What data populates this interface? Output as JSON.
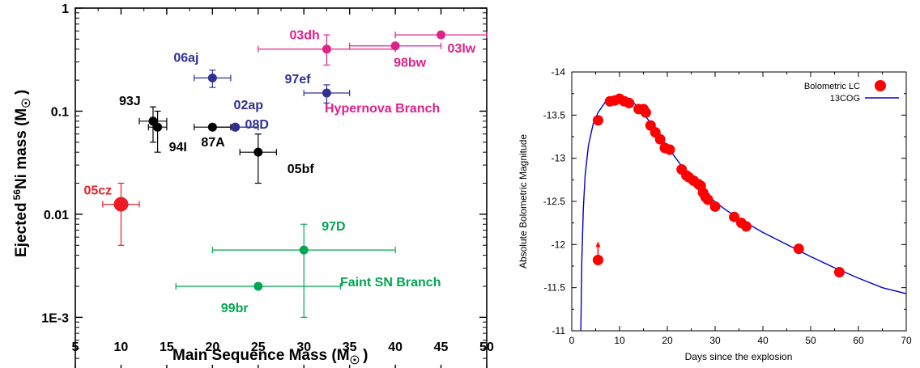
{
  "chart_data": [
    {
      "type": "scatter",
      "xlabel": "Main Sequence Mass (M",
      "xlabel_sub": "☉",
      "xlabel_end": ")",
      "ylabel": "Ejected",
      "ylabel_sup": "56",
      "ylabel_mid": "Ni mass (M",
      "ylabel_sub": "☉",
      "ylabel_end": ")",
      "xlim": [
        5,
        50
      ],
      "ylim": [
        0.0003,
        1
      ],
      "yscale": "log",
      "xticks": [
        5,
        10,
        15,
        20,
        25,
        30,
        35,
        40,
        45,
        50
      ],
      "xtick_labels": [
        "5",
        "10",
        "15",
        "20",
        "25",
        "30",
        "35",
        "40",
        "45",
        "50"
      ],
      "yticks": [
        1,
        0.1,
        0.01,
        0.001
      ],
      "ytick_labels": [
        "1",
        "0.1",
        "0.01",
        "1E-3"
      ],
      "points": [
        {
          "label": "03dh",
          "x": 32.5,
          "y": 0.4,
          "xerr": [
            25,
            40
          ],
          "yerr": [
            0.28,
            0.55
          ],
          "color": "#e0218a"
        },
        {
          "label": "98bw",
          "x": 40,
          "y": 0.43,
          "xerr": [
            35,
            45
          ],
          "yerr": null,
          "color": "#e0218a"
        },
        {
          "label": "03lw",
          "x": 45,
          "y": 0.55,
          "xerr": [
            40,
            50
          ],
          "yerr": null,
          "color": "#e0218a"
        },
        {
          "label": "06aj",
          "x": 20,
          "y": 0.21,
          "xerr": [
            18,
            22
          ],
          "yerr": [
            0.17,
            0.25
          ],
          "color": "#2e3192"
        },
        {
          "label": "97ef",
          "x": 32.5,
          "y": 0.15,
          "xerr": [
            30,
            35
          ],
          "yerr": [
            0.12,
            0.18
          ],
          "color": "#2e3192"
        },
        {
          "label": "02ap",
          "x": 22.5,
          "y": 0.07,
          "xerr": [
            20,
            25
          ],
          "yerr": null,
          "color": "#2e3192"
        },
        {
          "label": "08D",
          "x": 22.5,
          "y": 0.07,
          "xerr": [
            20,
            25
          ],
          "yerr": null,
          "color": "#2e3192"
        },
        {
          "label": "93J",
          "x": 13.5,
          "y": 0.08,
          "xerr": [
            12,
            15
          ],
          "yerr": [
            0.05,
            0.11
          ],
          "color": "#000000"
        },
        {
          "label": "94I",
          "x": 14,
          "y": 0.07,
          "xerr": [
            13,
            15
          ],
          "yerr": [
            0.04,
            0.1
          ],
          "color": "#000000"
        },
        {
          "label": "87A",
          "x": 20,
          "y": 0.07,
          "xerr": [
            18,
            22
          ],
          "yerr": null,
          "color": "#000000"
        },
        {
          "label": "05bf",
          "x": 25,
          "y": 0.04,
          "xerr": [
            23,
            27
          ],
          "yerr": [
            0.02,
            0.06
          ],
          "color": "#000000"
        },
        {
          "label": "05cz",
          "x": 10,
          "y": 0.0125,
          "xerr": [
            8,
            12
          ],
          "yerr": [
            0.005,
            0.02
          ],
          "color": "#ed1c24",
          "big": true
        },
        {
          "label": "97D",
          "x": 30,
          "y": 0.0045,
          "xerr": [
            20,
            40
          ],
          "yerr": [
            0.001,
            0.008
          ],
          "color": "#00a651"
        },
        {
          "label": "99br",
          "x": 25,
          "y": 0.002,
          "xerr": [
            16,
            34
          ],
          "yerr": null,
          "color": "#00a651"
        }
      ],
      "annotations": [
        {
          "text": "Hypernova Branch",
          "color": "#e0218a"
        },
        {
          "text": "Faint SN Branch",
          "color": "#00a651"
        }
      ]
    },
    {
      "type": "line",
      "xlabel": "Days since the explosion",
      "ylabel": "Absolute Bolometric Magnitude",
      "xlim": [
        0,
        70
      ],
      "ylim": [
        -14,
        -11
      ],
      "yaxis_inverted": true,
      "xticks": [
        0,
        10,
        20,
        30,
        40,
        50,
        60,
        70
      ],
      "xtick_labels": [
        "0",
        "10",
        "20",
        "30",
        "40",
        "50",
        "60",
        "70"
      ],
      "yticks": [
        -14,
        -13.5,
        -13,
        -12.5,
        -12,
        -11.5,
        -11
      ],
      "ytick_labels": [
        "-14",
        "-13.5",
        "-13",
        "-12.5",
        "-12",
        "-11.5",
        "-11"
      ],
      "legend": [
        {
          "label": "Bolometric LC",
          "marker": "circle",
          "color": "#ff0000"
        },
        {
          "label": "13COG",
          "marker": "line",
          "color": "#0000cc"
        }
      ],
      "legend_position": "top-right",
      "scatter_points": [
        [
          5.5,
          -13.44
        ],
        [
          8.0,
          -13.66
        ],
        [
          9.0,
          -13.67
        ],
        [
          10.0,
          -13.69
        ],
        [
          11.0,
          -13.66
        ],
        [
          12.0,
          -13.64
        ],
        [
          14.0,
          -13.57
        ],
        [
          15.0,
          -13.57
        ],
        [
          15.5,
          -13.53
        ],
        [
          16.5,
          -13.38
        ],
        [
          17.5,
          -13.3
        ],
        [
          18.5,
          -13.22
        ],
        [
          19.5,
          -13.12
        ],
        [
          20.5,
          -13.1
        ],
        [
          23.0,
          -12.87
        ],
        [
          24.0,
          -12.8
        ],
        [
          24.5,
          -12.78
        ],
        [
          25.5,
          -12.74
        ],
        [
          26.5,
          -12.7
        ],
        [
          27.0,
          -12.68
        ],
        [
          27.5,
          -12.6
        ],
        [
          28.0,
          -12.55
        ],
        [
          28.5,
          -12.52
        ],
        [
          30.0,
          -12.44
        ],
        [
          34.0,
          -12.32
        ],
        [
          35.5,
          -12.25
        ],
        [
          36.5,
          -12.21
        ],
        [
          47.5,
          -11.95
        ],
        [
          56.0,
          -11.68
        ]
      ],
      "upper_limit_point": [
        5.5,
        -11.82
      ],
      "model_curve": [
        [
          1.9,
          -11.0
        ],
        [
          2.1,
          -11.8
        ],
        [
          2.4,
          -12.4
        ],
        [
          2.8,
          -12.8
        ],
        [
          3.5,
          -13.15
        ],
        [
          4.5,
          -13.4
        ],
        [
          5.5,
          -13.53
        ],
        [
          7.0,
          -13.65
        ],
        [
          8.5,
          -13.71
        ],
        [
          10.0,
          -13.72
        ],
        [
          11.5,
          -13.7
        ],
        [
          13.0,
          -13.64
        ],
        [
          15.0,
          -13.52
        ],
        [
          17.0,
          -13.37
        ],
        [
          19.0,
          -13.21
        ],
        [
          21.0,
          -13.06
        ],
        [
          23.0,
          -12.91
        ],
        [
          25.0,
          -12.78
        ],
        [
          27.0,
          -12.65
        ],
        [
          29.0,
          -12.54
        ],
        [
          32.0,
          -12.41
        ],
        [
          35.0,
          -12.3
        ],
        [
          40.0,
          -12.14
        ],
        [
          45.0,
          -12.0
        ],
        [
          50.0,
          -11.86
        ],
        [
          55.0,
          -11.73
        ],
        [
          60.0,
          -11.61
        ],
        [
          65.0,
          -11.5
        ],
        [
          70.0,
          -11.43
        ]
      ]
    }
  ]
}
